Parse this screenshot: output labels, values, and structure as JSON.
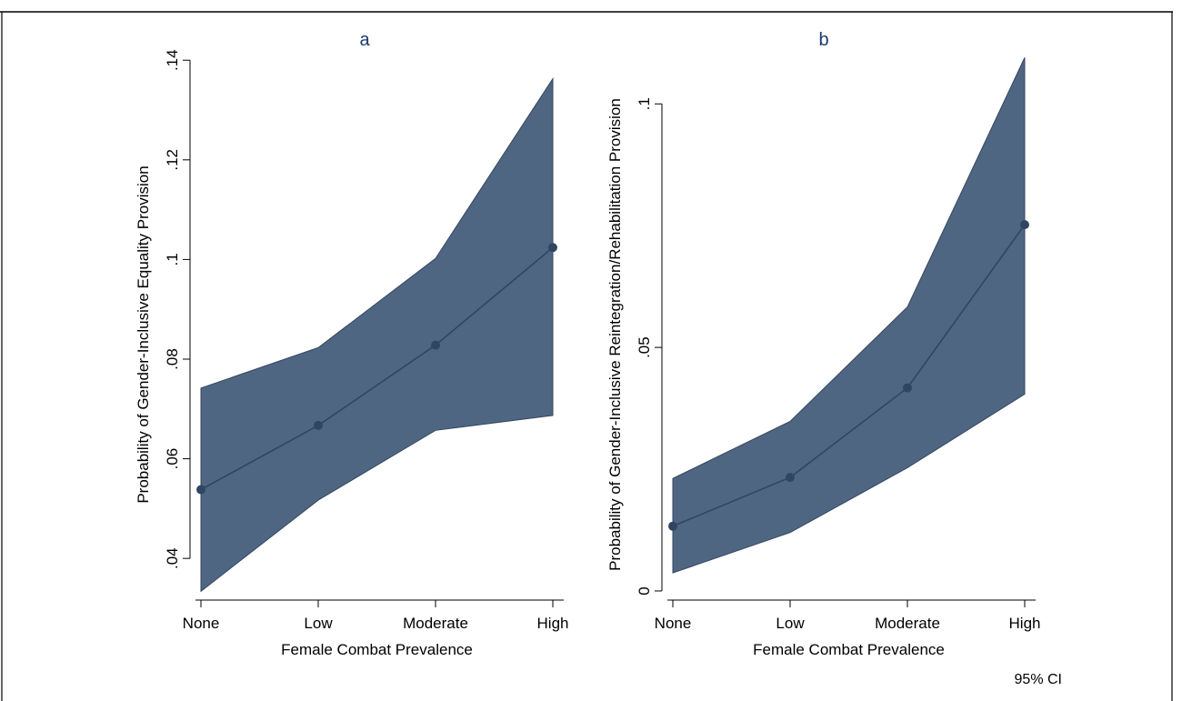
{
  "figure": {
    "note": "95% CI"
  },
  "colors": {
    "band": "#4f6683",
    "band_edge": "#35465f",
    "line": "#2f4561",
    "marker": "#2f4561",
    "axis": "#000000",
    "title": "#1a3a6b"
  },
  "chart_data": [
    {
      "type": "line",
      "panel": "a",
      "title": "a",
      "xlabel": "Female Combat Prevalence",
      "ylabel": "Probability of Gender-Inclusive Equality Provision",
      "categories": [
        "None",
        "Low",
        "Moderate",
        "High"
      ],
      "series": [
        {
          "values": [
            0.0538,
            0.0667,
            0.0828,
            0.1024
          ],
          "ci_lower": [
            0.0334,
            0.0517,
            0.0657,
            0.0687
          ],
          "ci_upper": [
            0.0742,
            0.0823,
            0.1002,
            0.1363
          ]
        }
      ],
      "yticks": [
        0.04,
        0.06,
        0.08,
        0.1,
        0.12,
        0.14
      ],
      "yticklabels": [
        ".04",
        ".06",
        ".08",
        ".1",
        ".12",
        ".14"
      ],
      "ylim": [
        0.032,
        0.1415
      ],
      "grid": false
    },
    {
      "type": "line",
      "panel": "b",
      "title": "b",
      "xlabel": "Female Combat Prevalence",
      "ylabel": "Probability of Gender-Inclusive Reintegration/Rehabilitation Provision",
      "categories": [
        "None",
        "Low",
        "Moderate",
        "High"
      ],
      "series": [
        {
          "values": [
            0.0133,
            0.0233,
            0.0417,
            0.0752
          ],
          "ci_lower": [
            0.0037,
            0.012,
            0.0253,
            0.0404
          ],
          "ci_upper": [
            0.0231,
            0.0348,
            0.0583,
            0.1095
          ]
        }
      ],
      "yticks": [
        0,
        0.05,
        0.1
      ],
      "yticklabels": [
        "0",
        ".05",
        ".1"
      ],
      "ylim": [
        -0.0015,
        0.1105
      ],
      "grid": false
    }
  ]
}
